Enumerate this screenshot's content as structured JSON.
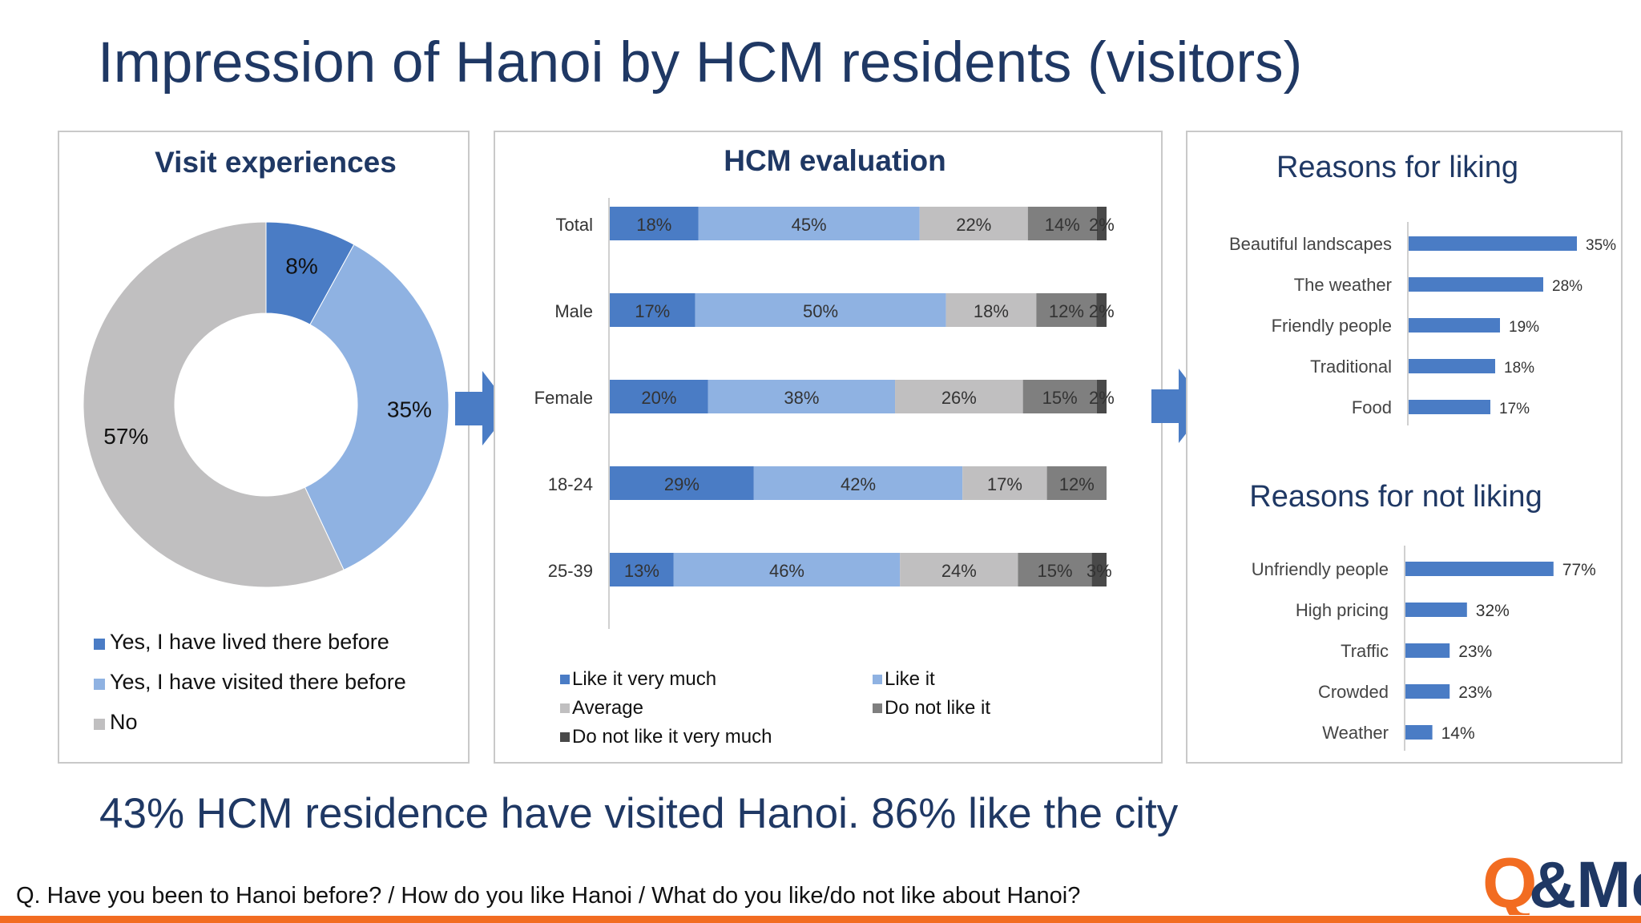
{
  "slide": {
    "title": "Impression of Hanoi by HCM residents (visitors)",
    "subtitle": "43% HCM residence have visited Hanoi. 86% like the city",
    "question": "Q. Have you been to Hanoi before? / How do you like Hanoi / What do you like/do not like about Hanoi?",
    "logo_text": "Q&Me",
    "colors": {
      "title": "#1f3864",
      "accent_bar": "#f26c21",
      "logo_q": "#f26c21",
      "logo_me": "#1f3864"
    }
  },
  "chart_data": [
    {
      "type": "pie",
      "title": "Visit experiences",
      "labels": [
        "Yes, I have lived there before",
        "Yes, I have visited there before",
        "No"
      ],
      "values": [
        8,
        35,
        57
      ],
      "value_labels": [
        "8%",
        "35%",
        "57%"
      ],
      "colors": [
        "#4a7cc5",
        "#8fb2e2",
        "#c0bfc0"
      ],
      "donut": true,
      "legend_position": "bottom"
    },
    {
      "type": "bar",
      "orientation": "horizontal",
      "stacked": true,
      "title": "HCM evaluation",
      "categories": [
        "Total",
        "Male",
        "Female",
        "18-24",
        "25-39"
      ],
      "series": [
        {
          "name": "Like it very much",
          "color": "#4a7cc5",
          "values": [
            18,
            17,
            20,
            29,
            13
          ],
          "labels": [
            "18%",
            "17%",
            "20%",
            "29%",
            "13%"
          ]
        },
        {
          "name": "Like it",
          "color": "#8fb2e2",
          "values": [
            45,
            50,
            38,
            42,
            46
          ],
          "labels": [
            "45%",
            "50%",
            "38%",
            "42%",
            "46%"
          ]
        },
        {
          "name": "Average",
          "color": "#c0bfc0",
          "values": [
            22,
            18,
            26,
            17,
            24
          ],
          "labels": [
            "22%",
            "18%",
            "26%",
            "17%",
            "24%"
          ]
        },
        {
          "name": "Do not like it",
          "color": "#7f7f7f",
          "values": [
            14,
            12,
            15,
            12,
            15
          ],
          "labels": [
            "14%",
            "12%",
            "15%",
            "12%",
            "15%"
          ]
        },
        {
          "name": "Do not like it very much",
          "color": "#494949",
          "values": [
            2,
            2,
            2,
            0,
            3
          ],
          "labels": [
            "2%",
            "2%",
            "2%",
            "",
            "3%"
          ]
        }
      ],
      "legend_position": "bottom"
    },
    {
      "type": "bar",
      "orientation": "horizontal",
      "title": "Reasons for liking",
      "categories": [
        "Beautiful landscapes",
        "The weather",
        "Friendly people",
        "Traditional",
        "Food"
      ],
      "values": [
        35,
        28,
        19,
        18,
        17
      ],
      "value_labels": [
        "35%",
        "28%",
        "19%",
        "18%",
        "17%"
      ],
      "color": "#4a7cc5"
    },
    {
      "type": "bar",
      "orientation": "horizontal",
      "title": "Reasons for not liking",
      "categories": [
        "Unfriendly people",
        "High pricing",
        "Traffic",
        "Crowded",
        "Weather"
      ],
      "values": [
        77,
        32,
        23,
        23,
        14
      ],
      "value_labels": [
        "77%",
        "32%",
        "23%",
        "23%",
        "14%"
      ],
      "color": "#4a7cc5"
    }
  ]
}
